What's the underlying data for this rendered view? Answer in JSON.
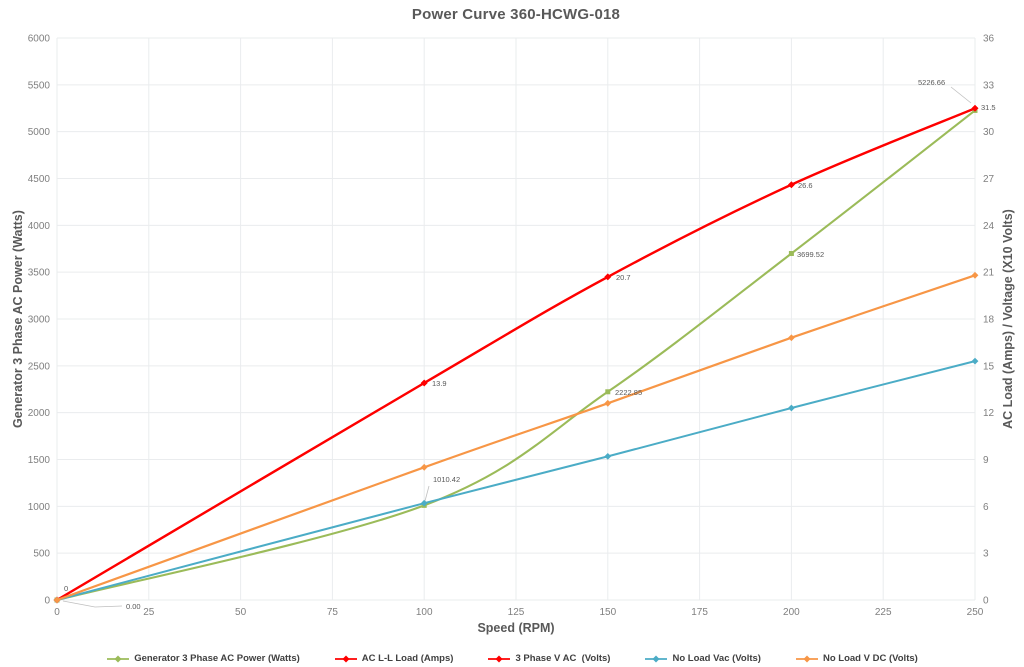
{
  "chart": {
    "title": "Power Curve 360-HCWG-018",
    "x_axis": {
      "title": "Speed (RPM)",
      "ticks": [
        "0",
        "25",
        "50",
        "75",
        "100",
        "125",
        "150",
        "175",
        "200",
        "225",
        "250"
      ]
    },
    "y_axis_left": {
      "title": "Generator 3 Phase AC Power (Watts)",
      "ticks": [
        "0",
        "500",
        "1000",
        "1500",
        "2000",
        "2500",
        "3000",
        "3500",
        "4000",
        "4500",
        "5000",
        "5500",
        "6000"
      ]
    },
    "y_axis_right": {
      "title": "AC Load (Amps) / Voltage (X10 Volts)",
      "ticks": [
        "0",
        "3",
        "6",
        "9",
        "12",
        "15",
        "18",
        "21",
        "24",
        "27",
        "30",
        "33",
        "36"
      ]
    }
  },
  "chart_data": {
    "type": "line",
    "title": "Power Curve 360-HCWG-018",
    "xlabel": "Speed (RPM)",
    "ylabel_left": "Generator 3 Phase AC Power (Watts)",
    "ylabel_right": "AC Load (Amps) / Voltage (X10 Volts)",
    "x_range": [
      0,
      250
    ],
    "x_tick_step": 25,
    "y_left_range": [
      0,
      6000
    ],
    "y_left_step": 500,
    "y_right_range": [
      0,
      36
    ],
    "y_right_step": 3,
    "grid": true,
    "legend_position": "bottom",
    "x": [
      0,
      100,
      150,
      200,
      250
    ],
    "series": [
      {
        "name": "Generator 3 Phase AC Power (Watts)",
        "axis": "left",
        "color": "#9bbb59",
        "marker": "square",
        "values": [
          0,
          1010.42,
          2222.85,
          3699.52,
          5226.66
        ],
        "point_labels": [
          "0.00",
          "1010.42",
          "2222.85",
          "3699.52",
          "5226.66"
        ]
      },
      {
        "name": "AC L-L Load (Amps)",
        "axis": "right",
        "color": "#fe0000",
        "marker": "diamond",
        "values": [
          0,
          13.9,
          20.7,
          26.6,
          31.5
        ],
        "point_labels": [
          "0",
          "13.9",
          "20.7",
          "26.6",
          "31.5"
        ]
      },
      {
        "name": "3 Phase V AC  (Volts)",
        "axis": "right",
        "color": "#fe0000",
        "marker": "diamond",
        "values": [
          0,
          13.9,
          20.7,
          26.6,
          31.5
        ],
        "point_labels": [
          "",
          "",
          "",
          "",
          ""
        ]
      },
      {
        "name": "No Load Vac (Volts)",
        "axis": "right",
        "color": "#4bacc6",
        "marker": "diamond",
        "values": [
          0,
          6.2,
          9.2,
          12.3,
          15.3
        ],
        "point_labels": [
          "",
          "",
          "",
          "",
          ""
        ]
      },
      {
        "name": "No Load V DC (Volts)",
        "axis": "right",
        "color": "#f79646",
        "marker": "diamond",
        "values": [
          0,
          8.5,
          12.6,
          16.8,
          20.8
        ],
        "point_labels": [
          "",
          "",
          "",
          "",
          ""
        ]
      }
    ]
  },
  "legend": {
    "items": [
      {
        "label": "Generator 3 Phase AC Power (Watts)",
        "color": "#9bbb59"
      },
      {
        "label": "AC L-L Load (Amps)",
        "color": "#fe0000"
      },
      {
        "label": "3 Phase V AC  (Volts)",
        "color": "#fe0000"
      },
      {
        "label": "No Load Vac (Volts)",
        "color": "#4bacc6"
      },
      {
        "label": "No Load V DC (Volts)",
        "color": "#f79646"
      }
    ]
  },
  "colors": {
    "title": "#595959",
    "tick_label": "#7f7f7f",
    "gridline": "#eaecee",
    "data_label": "#595959",
    "legend_text": "#404040",
    "leader_line": "#bfbfbf",
    "background": "#ffffff"
  }
}
